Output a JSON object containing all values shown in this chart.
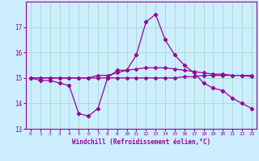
{
  "xlabel": "Windchill (Refroidissement éolien,°C)",
  "bg_color": "#cceeff",
  "grid_color": "#aaddcc",
  "line_color": "#990099",
  "x": [
    0,
    1,
    2,
    3,
    4,
    5,
    6,
    7,
    8,
    9,
    10,
    11,
    12,
    13,
    14,
    15,
    16,
    17,
    18,
    19,
    20,
    21,
    22,
    23
  ],
  "line1": [
    15.0,
    14.9,
    14.9,
    14.8,
    14.7,
    13.6,
    13.5,
    13.8,
    15.0,
    15.3,
    15.3,
    15.9,
    17.2,
    17.5,
    16.5,
    15.9,
    15.5,
    15.2,
    14.8,
    14.6,
    14.5,
    14.2,
    14.0,
    13.8
  ],
  "line2": [
    15.0,
    15.0,
    15.0,
    15.0,
    15.0,
    15.0,
    15.0,
    15.1,
    15.1,
    15.2,
    15.3,
    15.35,
    15.4,
    15.4,
    15.4,
    15.35,
    15.3,
    15.25,
    15.2,
    15.15,
    15.15,
    15.1,
    15.1,
    15.05
  ],
  "line3": [
    15.0,
    15.0,
    15.0,
    15.0,
    15.0,
    15.0,
    15.0,
    15.0,
    15.0,
    15.0,
    15.0,
    15.0,
    15.0,
    15.0,
    15.0,
    15.0,
    15.05,
    15.05,
    15.1,
    15.1,
    15.1,
    15.1,
    15.1,
    15.1
  ],
  "ylim": [
    13.0,
    18.0
  ],
  "yticks": [
    13,
    14,
    15,
    16,
    17
  ],
  "xticks": [
    0,
    1,
    2,
    3,
    4,
    5,
    6,
    7,
    8,
    9,
    10,
    11,
    12,
    13,
    14,
    15,
    16,
    17,
    18,
    19,
    20,
    21,
    22,
    23
  ]
}
